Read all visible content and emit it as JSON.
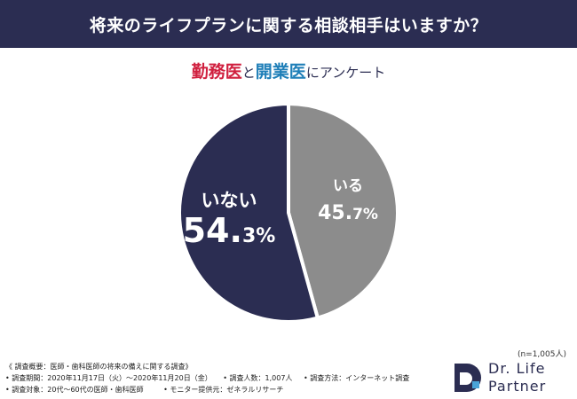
{
  "header": {
    "title": "将来のライフプランに関する相談相手はいますか？"
  },
  "subtitle": {
    "part1": "勤務医",
    "part2": "と",
    "part3": "開業医",
    "part4": "にアンケート"
  },
  "colors": {
    "header_bg": "#2b2d52",
    "no_slice": "#2b2d52",
    "yes_slice": "#8c8c8c",
    "kinmu": "#d0203f",
    "kaigyo": "#1f7fb8"
  },
  "chart_data": {
    "type": "pie",
    "slices": [
      {
        "label": "いる",
        "value": 45.7,
        "value_int": "45.",
        "value_dec": "7%",
        "color": "#8c8c8c"
      },
      {
        "label": "いない",
        "value": 54.3,
        "value_int": "54.",
        "value_dec": "3%",
        "color": "#2b2d52"
      }
    ]
  },
  "sample_size": "(n=1,005人)",
  "notes": {
    "line1": "《 調査概要：医師・歯科医師の将来の備えに関する調査》",
    "period": "• 調査期間：2020年11月17日（火）〜2020年11月20日（金）",
    "count": "• 調査人数：1,007人",
    "method": "• 調査方法：インターネット調査",
    "target": "• 調査対象：20代〜60代の医師・歯科医師",
    "provider": "• モニター提供元：ゼネラルリサーチ"
  },
  "logo": {
    "line1": "Dr. Life",
    "line2": "Partner",
    "icon": "d-logo-icon"
  }
}
